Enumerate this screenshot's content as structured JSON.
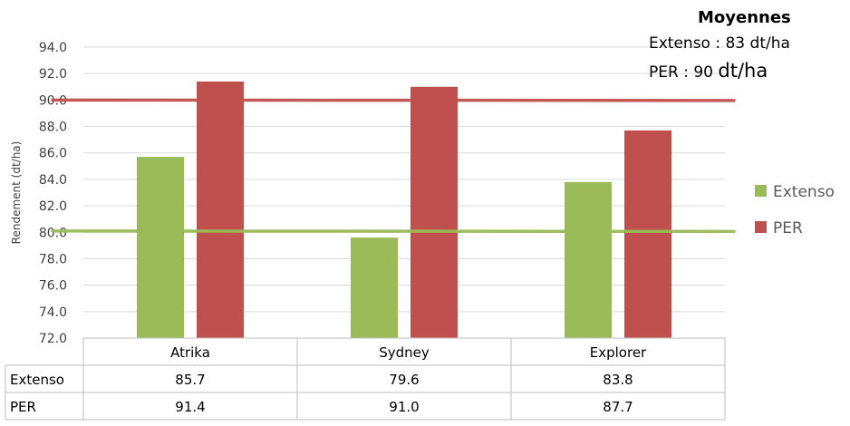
{
  "chart_data": {
    "type": "bar",
    "categories": [
      "Atrika",
      "Sydney",
      "Explorer"
    ],
    "series": [
      {
        "name": "Extenso",
        "values": [
          85.7,
          79.6,
          83.8
        ],
        "color": "#9BBB59"
      },
      {
        "name": "PER",
        "values": [
          91.4,
          91.0,
          87.7
        ],
        "color": "#C0504D"
      }
    ],
    "ylabel": "Rendement (dt/ha)",
    "ylim": [
      72.0,
      94.0
    ],
    "yticks": [
      "72.0",
      "74.0",
      "76.0",
      "78.0",
      "80.0",
      "82.0",
      "84.0",
      "86.0",
      "88.0",
      "90.0",
      "92.0",
      "94.0"
    ],
    "reference_lines": [
      {
        "series": "PER",
        "value": 90,
        "color": "#C0504D"
      },
      {
        "series": "Extenso",
        "value": 80.1,
        "color": "#9BBB59"
      }
    ],
    "grid": true,
    "legend_position": "right",
    "data_table": {
      "rows": [
        {
          "label": "Extenso",
          "cells": [
            "85.7",
            "79.6",
            "83.8"
          ]
        },
        {
          "label": "PER",
          "cells": [
            "91.4",
            "91.0",
            "87.7"
          ]
        }
      ]
    }
  },
  "averages": {
    "title": "Moyennes",
    "extenso_text": "Extenso : 83 dt/ha",
    "per_prefix": "PER : 90 ",
    "per_unit": "dt/ha"
  }
}
